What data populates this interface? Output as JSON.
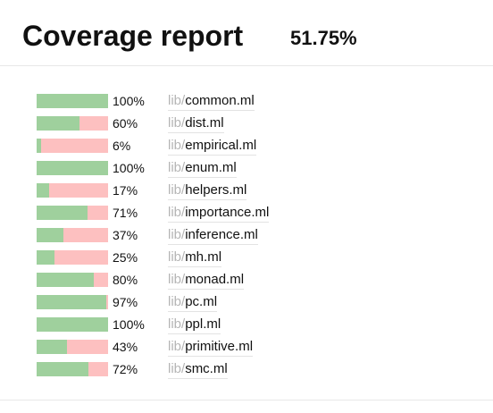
{
  "header": {
    "title": "Coverage report",
    "overall_percent": "51.75%"
  },
  "colors": {
    "covered": "#9fd09d",
    "uncovered": "#fdc0c0",
    "dir_text": "#b5b5b5"
  },
  "files": [
    {
      "dir": "lib/",
      "name": "common.ml",
      "percent_label": "100%",
      "coverage": 100
    },
    {
      "dir": "lib/",
      "name": "dist.ml",
      "percent_label": "60%",
      "coverage": 60
    },
    {
      "dir": "lib/",
      "name": "empirical.ml",
      "percent_label": "6%",
      "coverage": 6
    },
    {
      "dir": "lib/",
      "name": "enum.ml",
      "percent_label": "100%",
      "coverage": 100
    },
    {
      "dir": "lib/",
      "name": "helpers.ml",
      "percent_label": "17%",
      "coverage": 17
    },
    {
      "dir": "lib/",
      "name": "importance.ml",
      "percent_label": "71%",
      "coverage": 71
    },
    {
      "dir": "lib/",
      "name": "inference.ml",
      "percent_label": "37%",
      "coverage": 37
    },
    {
      "dir": "lib/",
      "name": "mh.ml",
      "percent_label": "25%",
      "coverage": 25
    },
    {
      "dir": "lib/",
      "name": "monad.ml",
      "percent_label": "80%",
      "coverage": 80
    },
    {
      "dir": "lib/",
      "name": "pc.ml",
      "percent_label": "97%",
      "coverage": 97
    },
    {
      "dir": "lib/",
      "name": "ppl.ml",
      "percent_label": "100%",
      "coverage": 100
    },
    {
      "dir": "lib/",
      "name": "primitive.ml",
      "percent_label": "43%",
      "coverage": 43
    },
    {
      "dir": "lib/",
      "name": "smc.ml",
      "percent_label": "72%",
      "coverage": 72
    }
  ]
}
